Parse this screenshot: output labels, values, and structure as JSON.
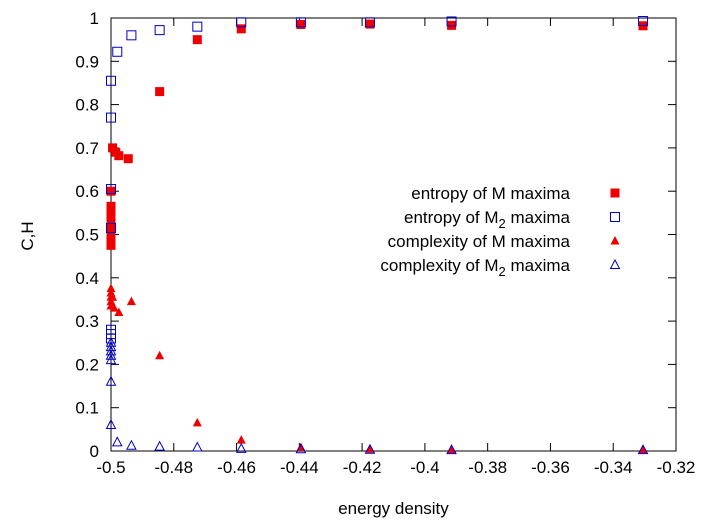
{
  "chart_data": {
    "type": "scatter",
    "xlabel": "energy density",
    "ylabel": "C,H",
    "xlim": [
      -0.5,
      -0.32
    ],
    "ylim": [
      0,
      1
    ],
    "xticks": [
      "-0.5",
      "-0.48",
      "-0.46",
      "-0.44",
      "-0.42",
      "-0.4",
      "-0.38",
      "-0.36",
      "-0.34",
      "-0.32"
    ],
    "yticks": [
      "0",
      "0.1",
      "0.2",
      "0.3",
      "0.4",
      "0.5",
      "0.6",
      "0.7",
      "0.8",
      "0.9",
      "1"
    ],
    "legend_position": "right",
    "grid": false,
    "series": [
      {
        "name": "entropy of M maxima",
        "marker": "filled-square",
        "color": "#ee0000",
        "points": [
          [
            -0.5,
            0.475
          ],
          [
            -0.5,
            0.49
          ],
          [
            -0.5,
            0.51
          ],
          [
            -0.5,
            0.525
          ],
          [
            -0.5,
            0.54
          ],
          [
            -0.5,
            0.555
          ],
          [
            -0.5,
            0.565
          ],
          [
            -0.5,
            0.6
          ],
          [
            -0.4995,
            0.7
          ],
          [
            -0.4985,
            0.69
          ],
          [
            -0.4975,
            0.682
          ],
          [
            -0.4945,
            0.675
          ],
          [
            -0.4845,
            0.83
          ],
          [
            -0.4725,
            0.95
          ],
          [
            -0.4585,
            0.975
          ],
          [
            -0.4395,
            0.985
          ],
          [
            -0.4175,
            0.986
          ],
          [
            -0.3915,
            0.983
          ],
          [
            -0.3305,
            0.982
          ]
        ]
      },
      {
        "name": "entropy of M",
        "subscript": "2",
        "name_suffix": "maxima",
        "marker": "open-square",
        "color": "#0000cc",
        "points": [
          [
            -0.5,
            0.26
          ],
          [
            -0.5,
            0.27
          ],
          [
            -0.5,
            0.28
          ],
          [
            -0.5,
            0.515
          ],
          [
            -0.5,
            0.605
          ],
          [
            -0.5,
            0.77
          ],
          [
            -0.5,
            0.855
          ],
          [
            -0.498,
            0.922
          ],
          [
            -0.4935,
            0.96
          ],
          [
            -0.4845,
            0.972
          ],
          [
            -0.4725,
            0.98
          ],
          [
            -0.4585,
            0.99
          ],
          [
            -0.4395,
            0.99
          ],
          [
            -0.4175,
            0.99
          ],
          [
            -0.3915,
            0.992
          ],
          [
            -0.3305,
            0.993
          ]
        ]
      },
      {
        "name": "complexity of  M maxima",
        "marker": "filled-triangle",
        "color": "#ee0000",
        "points": [
          [
            -0.5,
            0.335
          ],
          [
            -0.5,
            0.345
          ],
          [
            -0.5,
            0.355
          ],
          [
            -0.5,
            0.365
          ],
          [
            -0.5,
            0.375
          ],
          [
            -0.4995,
            0.355
          ],
          [
            -0.499,
            0.33
          ],
          [
            -0.4975,
            0.32
          ],
          [
            -0.4935,
            0.345
          ],
          [
            -0.4845,
            0.22
          ],
          [
            -0.4725,
            0.065
          ],
          [
            -0.4585,
            0.025
          ],
          [
            -0.4395,
            0.008
          ],
          [
            -0.4175,
            0.004
          ],
          [
            -0.3915,
            0.003
          ],
          [
            -0.3305,
            0.003
          ]
        ]
      },
      {
        "name": "complexity of M",
        "subscript": "2",
        "name_suffix": "maxima",
        "marker": "open-triangle",
        "color": "#0000cc",
        "points": [
          [
            -0.5,
            0.16
          ],
          [
            -0.5,
            0.21
          ],
          [
            -0.5,
            0.22
          ],
          [
            -0.5,
            0.23
          ],
          [
            -0.5,
            0.24
          ],
          [
            -0.5,
            0.25
          ],
          [
            -0.5,
            0.06
          ],
          [
            -0.498,
            0.02
          ],
          [
            -0.4935,
            0.012
          ],
          [
            -0.4845,
            0.01
          ],
          [
            -0.4725,
            0.008
          ],
          [
            -0.4585,
            0.005
          ],
          [
            -0.4395,
            0.004
          ],
          [
            -0.4175,
            0.003
          ],
          [
            -0.3915,
            0.002
          ],
          [
            -0.3305,
            0.002
          ]
        ]
      }
    ]
  }
}
